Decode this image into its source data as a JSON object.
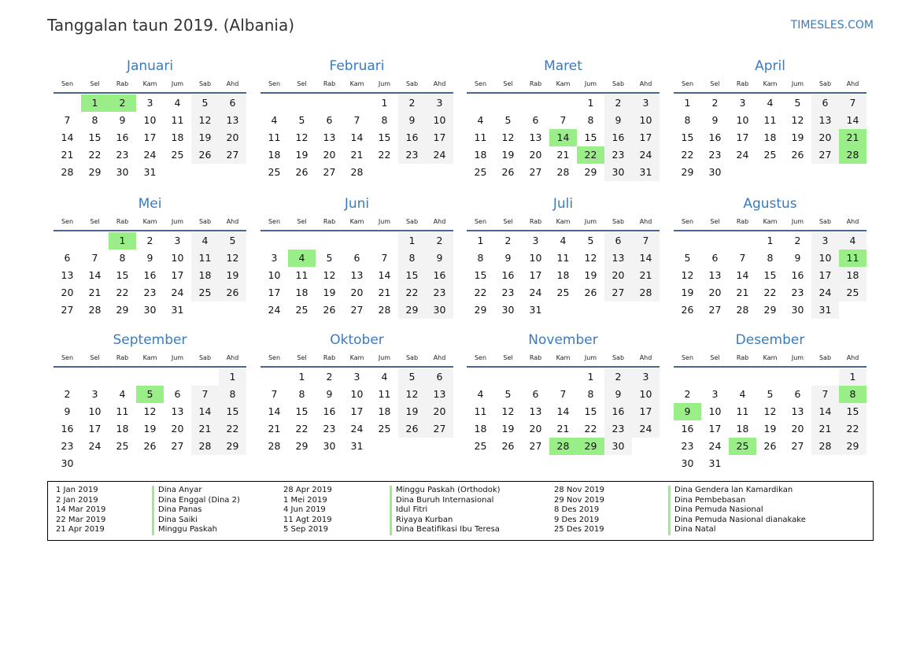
{
  "header": {
    "title": "Tanggalan taun 2019. (Albania)",
    "site": "TIMESLES.COM"
  },
  "weekdays": [
    "Sen",
    "Sel",
    "Rab",
    "Kam",
    "Jum",
    "Sab",
    "Ahd"
  ],
  "colors": {
    "accent": "#3a7bbf",
    "holiday": "#99ee88",
    "weekend": "#f3f3f3",
    "rule": "#4a6590"
  },
  "months": [
    {
      "name": "Januari",
      "start": 1,
      "days": 31,
      "holidays": [
        1,
        2
      ]
    },
    {
      "name": "Februari",
      "start": 4,
      "days": 28,
      "holidays": []
    },
    {
      "name": "Maret",
      "start": 4,
      "days": 31,
      "holidays": [
        14,
        22
      ]
    },
    {
      "name": "April",
      "start": 0,
      "days": 30,
      "holidays": [
        21,
        28
      ]
    },
    {
      "name": "Mei",
      "start": 2,
      "days": 31,
      "holidays": [
        1
      ]
    },
    {
      "name": "Juni",
      "start": 5,
      "days": 30,
      "holidays": [
        4
      ]
    },
    {
      "name": "Juli",
      "start": 0,
      "days": 31,
      "holidays": []
    },
    {
      "name": "Agustus",
      "start": 3,
      "days": 31,
      "holidays": [
        11
      ]
    },
    {
      "name": "September",
      "start": 6,
      "days": 30,
      "holidays": [
        5
      ]
    },
    {
      "name": "Oktober",
      "start": 1,
      "days": 31,
      "holidays": []
    },
    {
      "name": "November",
      "start": 4,
      "days": 30,
      "holidays": [
        28,
        29
      ]
    },
    {
      "name": "Desember",
      "start": 6,
      "days": 31,
      "holidays": [
        8,
        9,
        25
      ]
    }
  ],
  "legend": [
    [
      {
        "date": "1 Jan 2019",
        "name": "Dina Anyar"
      },
      {
        "date": "2 Jan 2019",
        "name": "Dina Enggal (Dina 2)"
      },
      {
        "date": "14 Mar 2019",
        "name": "Dina Panas"
      },
      {
        "date": "22 Mar 2019",
        "name": "Dina Saiki"
      },
      {
        "date": "21 Apr 2019",
        "name": "Minggu Paskah"
      }
    ],
    [
      {
        "date": "28 Apr 2019",
        "name": "Minggu Paskah (Orthodok)"
      },
      {
        "date": "1 Mei 2019",
        "name": "Dina Buruh Internasional"
      },
      {
        "date": "4 Jun 2019",
        "name": "Idul Fitri"
      },
      {
        "date": "11 Agt 2019",
        "name": "Riyaya Kurban"
      },
      {
        "date": "5 Sep 2019",
        "name": "Dina Beatifikasi Ibu Teresa"
      }
    ],
    [
      {
        "date": "28 Nov 2019",
        "name": "Dina Gendera lan Kamardikan"
      },
      {
        "date": "29 Nov 2019",
        "name": "Dina Pembebasan"
      },
      {
        "date": "8 Des 2019",
        "name": "Dina Pemuda Nasional"
      },
      {
        "date": "9 Des 2019",
        "name": "Dina Pemuda Nasional dianakake"
      },
      {
        "date": "25 Des 2019",
        "name": "Dina Natal"
      }
    ]
  ]
}
